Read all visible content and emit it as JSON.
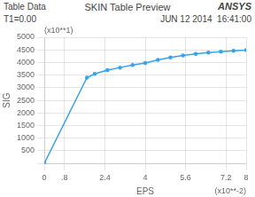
{
  "chart_data": {
    "type": "line",
    "title": "SKIN Table Preview",
    "xlabel": "EPS",
    "ylabel": "SIG",
    "annotations": [
      "Table Data",
      "T1=0.00",
      "ANSYS",
      "JUN 12 2014",
      "16:41:00",
      "(x10**1)",
      "(x10**-2)"
    ],
    "x": [
      0.0,
      0.001,
      1.69,
      2.0,
      2.5,
      3.0,
      3.5,
      4.0,
      4.5,
      5.0,
      5.5,
      6.0,
      6.5,
      7.0,
      7.5,
      8.0
    ],
    "values": [
      0.0,
      0.0,
      3400,
      3550,
      3700,
      3800,
      3900,
      3980,
      4100,
      4200,
      4280,
      4340,
      4390,
      4430,
      4460,
      4490
    ],
    "xlim": [
      0,
      8
    ],
    "ylim": [
      0,
      5000
    ],
    "xticks": [
      0,
      {
        "value": 0.8,
        "label": ".8"
      },
      2.4,
      4,
      5.6,
      7.2,
      8
    ],
    "yticks": [
      {
        "value": 0,
        "label": ""
      },
      500,
      1000,
      1500,
      2000,
      2500,
      3000,
      3500,
      4000,
      4500,
      5000
    ],
    "grid": true
  }
}
